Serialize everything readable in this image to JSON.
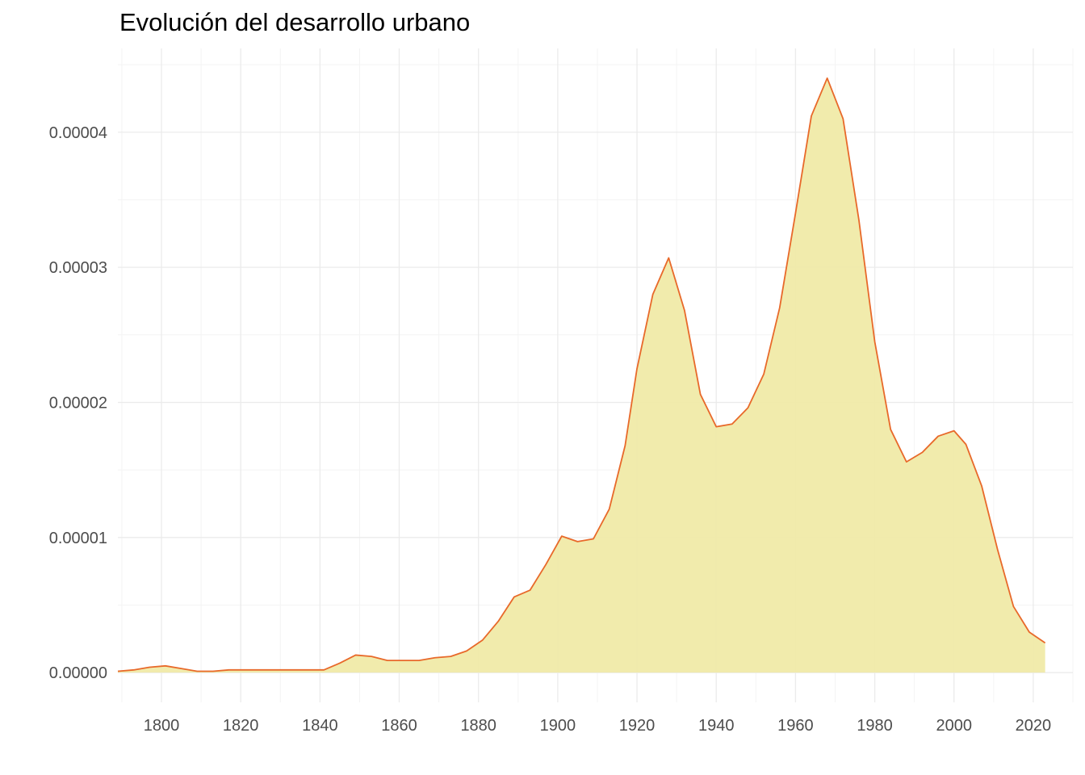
{
  "chart_data": {
    "type": "area",
    "title": "Evolución del desarrollo urbano",
    "xlabel": "",
    "ylabel": "",
    "xlim": [
      1789,
      2030
    ],
    "ylim": [
      -2.2e-06,
      4.62e-05
    ],
    "x_ticks": [
      1800,
      1820,
      1840,
      1860,
      1880,
      1900,
      1920,
      1940,
      1960,
      1980,
      2000,
      2020
    ],
    "x_tick_labels": [
      "1800",
      "1820",
      "1840",
      "1860",
      "1880",
      "1900",
      "1920",
      "1940",
      "1960",
      "1980",
      "2000",
      "2020"
    ],
    "y_ticks": [
      0,
      1e-05,
      2e-05,
      3e-05,
      4e-05
    ],
    "y_tick_labels": [
      "0.00000",
      "0.00001",
      "0.00002",
      "0.00003",
      "0.00004"
    ],
    "grid": true,
    "colors": {
      "fill": "#f0eaa8",
      "line": "#e8692a",
      "grid_major": "#ebebeb",
      "grid_minor": "#f4f4f4",
      "text": "#4d4d4d"
    },
    "series": [
      {
        "x": [
          1789,
          1793,
          1797,
          1801,
          1805,
          1809,
          1813,
          1817,
          1821,
          1825,
          1829,
          1833,
          1837,
          1841,
          1845,
          1849,
          1853,
          1857,
          1861,
          1865,
          1869,
          1873,
          1877,
          1881,
          1885,
          1889,
          1893,
          1897,
          1901,
          1905,
          1909,
          1913,
          1917,
          1920,
          1924,
          1928,
          1932,
          1936,
          1940,
          1944,
          1948,
          1952,
          1956,
          1960,
          1964,
          1968,
          1972,
          1976,
          1980,
          1984,
          1988,
          1992,
          1996,
          2000,
          2003,
          2007,
          2011,
          2015,
          2019,
          2023
        ],
        "y": [
          1e-07,
          2e-07,
          4e-07,
          5e-07,
          3e-07,
          1e-07,
          1e-07,
          2e-07,
          2e-07,
          2e-07,
          2e-07,
          2e-07,
          2e-07,
          2e-07,
          7e-07,
          1.3e-06,
          1.2e-06,
          9e-07,
          9e-07,
          9e-07,
          1.1e-06,
          1.2e-06,
          1.6e-06,
          2.4e-06,
          3.8e-06,
          5.6e-06,
          6.1e-06,
          8e-06,
          1.01e-05,
          9.7e-06,
          9.9e-06,
          1.21e-05,
          1.68e-05,
          2.25e-05,
          2.8e-05,
          3.07e-05,
          2.68e-05,
          2.06e-05,
          1.82e-05,
          1.84e-05,
          1.96e-05,
          2.21e-05,
          2.7e-05,
          3.4e-05,
          4.12e-05,
          4.4e-05,
          4.1e-05,
          3.35e-05,
          2.45e-05,
          1.8e-05,
          1.56e-05,
          1.63e-05,
          1.75e-05,
          1.79e-05,
          1.69e-05,
          1.38e-05,
          9.1e-06,
          4.9e-06,
          3e-06,
          2.2e-06
        ]
      }
    ]
  }
}
